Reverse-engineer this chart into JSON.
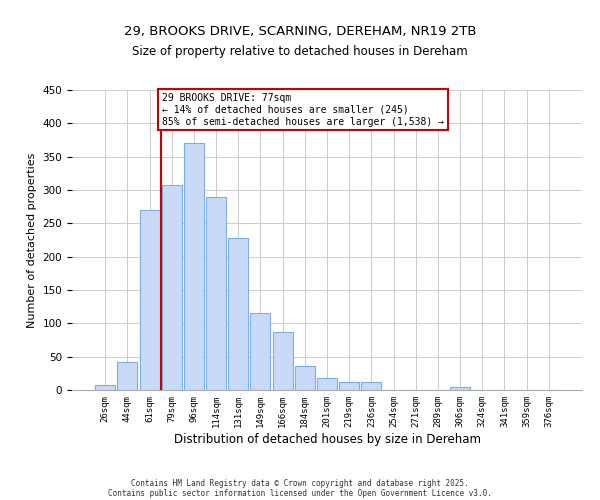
{
  "title": "29, BROOKS DRIVE, SCARNING, DEREHAM, NR19 2TB",
  "subtitle": "Size of property relative to detached houses in Dereham",
  "xlabel": "Distribution of detached houses by size in Dereham",
  "ylabel": "Number of detached properties",
  "bin_labels": [
    "26sqm",
    "44sqm",
    "61sqm",
    "79sqm",
    "96sqm",
    "114sqm",
    "131sqm",
    "149sqm",
    "166sqm",
    "184sqm",
    "201sqm",
    "219sqm",
    "236sqm",
    "254sqm",
    "271sqm",
    "289sqm",
    "306sqm",
    "324sqm",
    "341sqm",
    "359sqm",
    "376sqm"
  ],
  "bin_values": [
    7,
    42,
    270,
    308,
    370,
    290,
    228,
    115,
    87,
    36,
    18,
    12,
    12,
    0,
    0,
    0,
    5,
    0,
    0,
    0,
    0
  ],
  "bar_color": "#c9daf8",
  "bar_edge_color": "#7baee8",
  "property_line_x": 3,
  "property_line_color": "#cc0000",
  "annotation_line1": "29 BROOKS DRIVE: 77sqm",
  "annotation_line2": "← 14% of detached houses are smaller (245)",
  "annotation_line3": "85% of semi-detached houses are larger (1,538) →",
  "annotation_box_color": "#cc0000",
  "ylim": [
    0,
    450
  ],
  "footer_line1": "Contains HM Land Registry data © Crown copyright and database right 2025.",
  "footer_line2": "Contains public sector information licensed under the Open Government Licence v3.0.",
  "background_color": "#ffffff",
  "grid_color": "#cccccc",
  "title_fontsize": 9.5,
  "ylabel_fontsize": 8,
  "xlabel_fontsize": 8.5
}
